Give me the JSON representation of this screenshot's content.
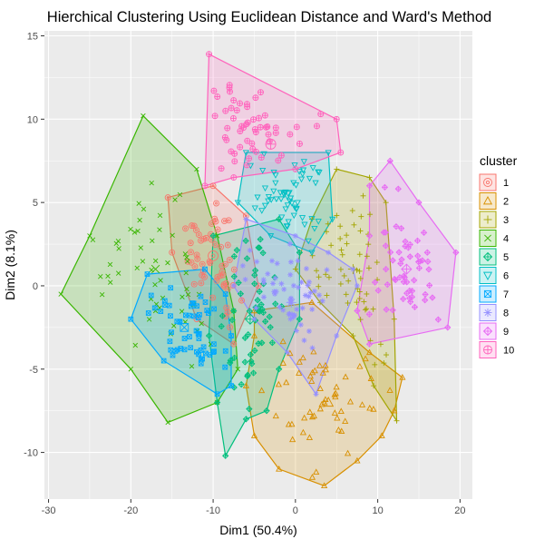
{
  "chart_data": {
    "type": "scatter",
    "title": "Hierchical Clustering Using Euclidean Distance and Ward's Method",
    "xlabel": "Dim1 (50.4%)",
    "ylabel": "Dim2 (8.1%)",
    "xlim": [
      -30.5,
      21.5
    ],
    "ylim": [
      -12.8,
      15.3
    ],
    "xticks": [
      -30,
      -20,
      -10,
      0,
      10,
      20
    ],
    "yticks": [
      -10,
      -5,
      0,
      5,
      10,
      15
    ],
    "grid": true,
    "legend": {
      "title": "cluster",
      "placement": "right"
    },
    "series": [
      {
        "name": "1",
        "color": "#F8766D",
        "shape": "circle-dot",
        "hull": [
          [
            -15.5,
            5.3
          ],
          [
            -10,
            6
          ],
          [
            -6,
            4.2
          ],
          [
            -4.5,
            0
          ],
          [
            -7.5,
            -3.5
          ],
          [
            -12,
            -2
          ],
          [
            -15,
            2
          ]
        ],
        "center": [
          -10,
          1.8
        ]
      },
      {
        "name": "2",
        "color": "#D89000",
        "shape": "triangle",
        "hull": [
          [
            -5,
            -1.5
          ],
          [
            2,
            -1
          ],
          [
            9,
            -4
          ],
          [
            13,
            -5.5
          ],
          [
            12,
            -7.5
          ],
          [
            10.5,
            -9
          ],
          [
            7.5,
            -10.5
          ],
          [
            3.5,
            -12
          ],
          [
            -2,
            -11
          ],
          [
            -5,
            -9
          ],
          [
            -6,
            -6
          ],
          [
            -5,
            -3
          ]
        ],
        "center": [
          4,
          -7
        ]
      },
      {
        "name": "3",
        "color": "#A3A500",
        "shape": "plus",
        "hull": [
          [
            5,
            7
          ],
          [
            9,
            6.5
          ],
          [
            11,
            5
          ],
          [
            12,
            -2
          ],
          [
            12.3,
            -8.1
          ],
          [
            9.5,
            -6
          ],
          [
            7,
            -3
          ],
          [
            3,
            -1
          ],
          [
            0,
            1
          ],
          [
            2,
            4
          ]
        ],
        "center": [
          7,
          1
        ]
      },
      {
        "name": "4",
        "color": "#39B600",
        "shape": "cross",
        "hull": [
          [
            -18.5,
            10.2
          ],
          [
            -12,
            7
          ],
          [
            -9.5,
            3
          ],
          [
            -7.5,
            -1.5
          ],
          [
            -7,
            -5
          ],
          [
            -9.5,
            -7
          ],
          [
            -15.5,
            -8.2
          ],
          [
            -20,
            -5
          ],
          [
            -28.5,
            -0.5
          ],
          [
            -25,
            3
          ]
        ],
        "center": [
          -17,
          1
        ]
      },
      {
        "name": "5",
        "color": "#00BF7D",
        "shape": "diamond-plus",
        "hull": [
          [
            -10,
            3
          ],
          [
            -2,
            4
          ],
          [
            0.5,
            2
          ],
          [
            0.5,
            -2
          ],
          [
            -2,
            -5
          ],
          [
            -3.5,
            -7.5
          ],
          [
            -6,
            -8
          ],
          [
            -8.5,
            -10.2
          ],
          [
            -9.5,
            -7
          ],
          [
            -10.5,
            -3
          ]
        ],
        "center": [
          -5.5,
          -2
        ]
      },
      {
        "name": "6",
        "color": "#00BFC4",
        "shape": "triangle-down",
        "hull": [
          [
            -6,
            8
          ],
          [
            4,
            8
          ],
          [
            4.5,
            4
          ],
          [
            2,
            2
          ],
          [
            -3,
            3
          ],
          [
            -7,
            5
          ]
        ],
        "center": [
          -1,
          5.5
        ]
      },
      {
        "name": "7",
        "color": "#00A9FF",
        "shape": "square-cross",
        "hull": [
          [
            -18,
            0.7
          ],
          [
            -11,
            1
          ],
          [
            -8.5,
            -0.5
          ],
          [
            -7.8,
            -3
          ],
          [
            -7.8,
            -6
          ],
          [
            -9.5,
            -6.5
          ],
          [
            -16,
            -4.5
          ],
          [
            -20,
            -2
          ]
        ],
        "center": [
          -13.5,
          -2.5
        ]
      },
      {
        "name": "8",
        "color": "#9590FF",
        "shape": "asterisk",
        "hull": [
          [
            -6,
            4
          ],
          [
            0,
            3
          ],
          [
            4,
            2
          ],
          [
            7,
            1
          ],
          [
            7.5,
            0
          ],
          [
            5,
            -3
          ],
          [
            2.5,
            -6.5
          ],
          [
            -1,
            -4
          ],
          [
            -5,
            -2
          ],
          [
            -7.5,
            0
          ]
        ],
        "center": [
          -0.5,
          -1
        ]
      },
      {
        "name": "9",
        "color": "#E76BF3",
        "shape": "diamond-plus",
        "hull": [
          [
            11.5,
            7.5
          ],
          [
            15,
            5
          ],
          [
            19.5,
            2
          ],
          [
            18.5,
            -2.5
          ],
          [
            9,
            -3.5
          ],
          [
            7.5,
            -1.5
          ],
          [
            9,
            3
          ],
          [
            9,
            6
          ]
        ],
        "center": [
          13.5,
          1
        ]
      },
      {
        "name": "10",
        "color": "#FF62BC",
        "shape": "circle-plus",
        "hull": [
          [
            -10.5,
            13.9
          ],
          [
            5,
            10
          ],
          [
            5.5,
            8
          ],
          [
            0,
            7
          ],
          [
            -7.5,
            6.5
          ],
          [
            -11,
            6
          ]
        ],
        "center": [
          -3,
          8.5
        ]
      }
    ]
  }
}
